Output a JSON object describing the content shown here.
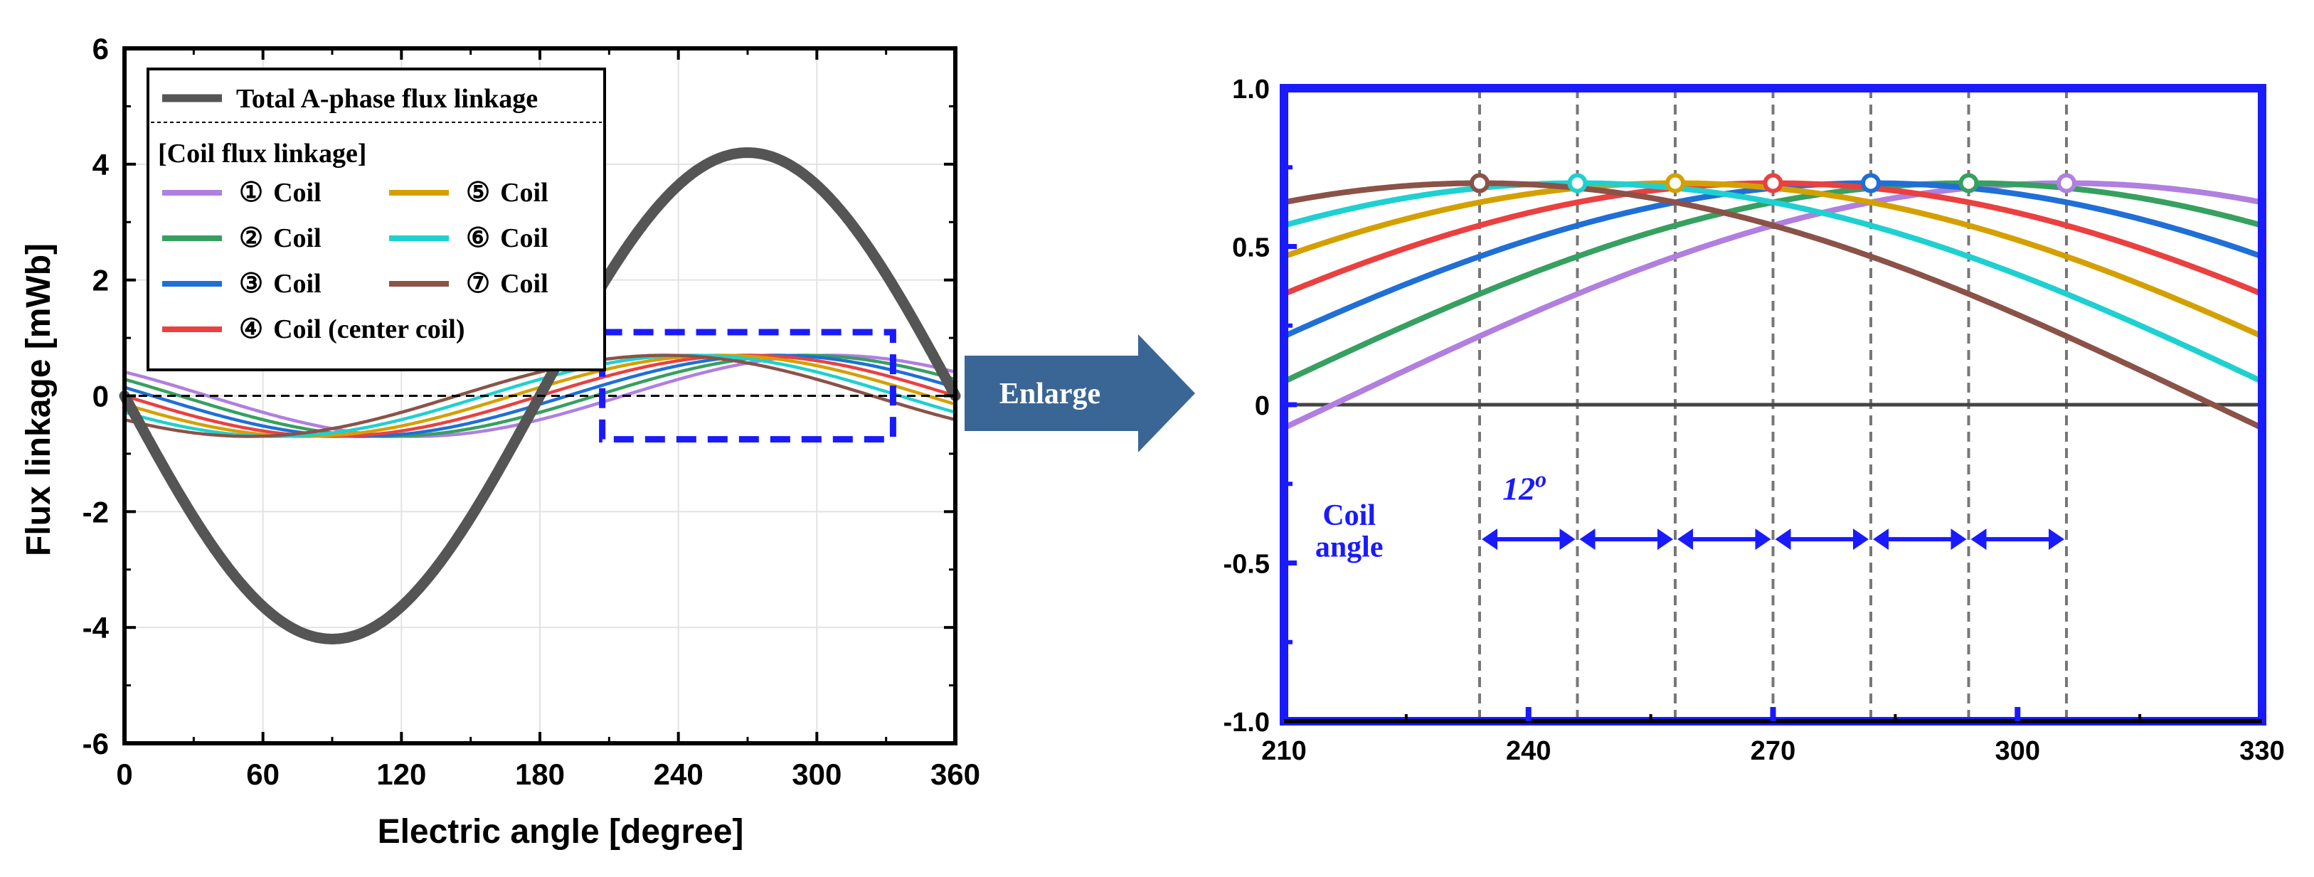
{
  "colors": {
    "total": "#555555",
    "coil1": "#b07fdf",
    "coil2": "#36a060",
    "coil3": "#1f6fd6",
    "coil4": "#ea4040",
    "coil5": "#d4a000",
    "coil6": "#1fd0d0",
    "coil7": "#8b5248",
    "highlight": "#1a1aff",
    "arrow": "#3a6696"
  },
  "left_panel": {
    "xlabel": "Electric angle [degree]",
    "ylabel": "Flux linkage [mWb]",
    "legend_total_label": "Total  A-phase flux linkage",
    "legend_group_label": "[Coil flux linkage]",
    "legend_items": [
      {
        "num": "①",
        "text": "Coil",
        "color_key": "coil1"
      },
      {
        "num": "②",
        "text": "Coil",
        "color_key": "coil2"
      },
      {
        "num": "③",
        "text": "Coil",
        "color_key": "coil3"
      },
      {
        "num": "④",
        "text": "Coil (center coil)",
        "color_key": "coil4"
      },
      {
        "num": "⑤",
        "text": "Coil",
        "color_key": "coil5"
      },
      {
        "num": "⑥",
        "text": "Coil",
        "color_key": "coil6"
      },
      {
        "num": "⑦",
        "text": "Coil",
        "color_key": "coil7"
      }
    ]
  },
  "arrow_label": "Enlarge",
  "right_panel": {
    "annotation_coil": "Coil",
    "annotation_angle": "angle",
    "annotation_step": "12",
    "annotation_step_sup": "o"
  },
  "chart_data": [
    {
      "type": "line",
      "title": "",
      "xlabel": "Electric angle [degree]",
      "ylabel": "Flux linkage [mWb]",
      "xlim": [
        0,
        360
      ],
      "ylim": [
        -6,
        6
      ],
      "xticks": [
        0,
        60,
        120,
        180,
        240,
        300,
        360
      ],
      "yticks": [
        -6,
        -4,
        -2,
        0,
        2,
        4,
        6
      ],
      "grid": true,
      "legend": "top-left",
      "zoom_box": {
        "x": [
          207,
          333
        ],
        "y": [
          -0.75,
          1.1
        ]
      },
      "series": [
        {
          "name": "Total  A-phase flux linkage",
          "function": "-A*sin(x)",
          "amplitude": 4.2
        },
        {
          "name": "① Coil",
          "function": "-A*sin(x-phase)",
          "amplitude": 0.7,
          "phase": 36
        },
        {
          "name": "② Coil",
          "function": "-A*sin(x-phase)",
          "amplitude": 0.7,
          "phase": 24
        },
        {
          "name": "③ Coil",
          "function": "-A*sin(x-phase)",
          "amplitude": 0.7,
          "phase": 12
        },
        {
          "name": "④ Coil (center coil)",
          "function": "-A*sin(x-phase)",
          "amplitude": 0.7,
          "phase": 0
        },
        {
          "name": "⑤ Coil",
          "function": "-A*sin(x-phase)",
          "amplitude": 0.7,
          "phase": -12
        },
        {
          "name": "⑥ Coil",
          "function": "-A*sin(x-phase)",
          "amplitude": 0.7,
          "phase": -24
        },
        {
          "name": "⑦ Coil",
          "function": "-A*sin(x-phase)",
          "amplitude": 0.7,
          "phase": -36
        }
      ]
    },
    {
      "type": "line",
      "title": "",
      "xlabel": "",
      "ylabel": "",
      "xlim": [
        210,
        330
      ],
      "ylim": [
        -1.0,
        1.0
      ],
      "xticks": [
        210,
        240,
        270,
        300,
        330
      ],
      "yticks": [
        -1.0,
        -0.5,
        0,
        0.5,
        1.0
      ],
      "ytick_labels": [
        "-1.0",
        "-0.5",
        "0",
        "0.5",
        "1.0"
      ],
      "grid": false,
      "peak_angles": [
        234,
        246,
        258,
        270,
        282,
        294,
        306
      ],
      "peak_value": 0.7,
      "coil_angle_step_deg": 12,
      "series": [
        {
          "name": "① Coil",
          "amplitude": 0.7,
          "phase": 36,
          "peak_at": 306
        },
        {
          "name": "② Coil",
          "amplitude": 0.7,
          "phase": 24,
          "peak_at": 294
        },
        {
          "name": "③ Coil",
          "amplitude": 0.7,
          "phase": 12,
          "peak_at": 282
        },
        {
          "name": "④ Coil (center coil)",
          "amplitude": 0.7,
          "phase": 0,
          "peak_at": 270
        },
        {
          "name": "⑤ Coil",
          "amplitude": 0.7,
          "phase": -12,
          "peak_at": 258
        },
        {
          "name": "⑥ Coil",
          "amplitude": 0.7,
          "phase": -24,
          "peak_at": 246
        },
        {
          "name": "⑦ Coil",
          "amplitude": 0.7,
          "phase": -36,
          "peak_at": 234
        }
      ]
    }
  ]
}
